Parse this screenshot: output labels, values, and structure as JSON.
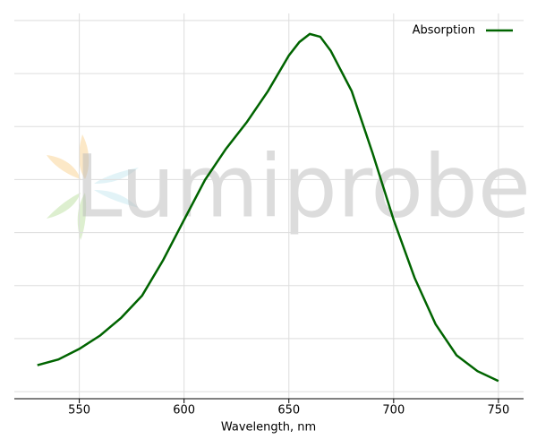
{
  "chart_data": {
    "type": "line",
    "xlabel": "Wavelength, nm",
    "watermark": "Lumiprobe",
    "x": [
      530,
      540,
      550,
      560,
      570,
      580,
      590,
      600,
      610,
      620,
      630,
      640,
      650,
      655,
      660,
      665,
      670,
      680,
      690,
      700,
      710,
      720,
      730,
      740,
      750
    ],
    "series": [
      {
        "name": "Absorption",
        "color": "#006400",
        "values": [
          0.075,
          0.091,
          0.121,
          0.159,
          0.209,
          0.272,
          0.372,
          0.486,
          0.599,
          0.687,
          0.763,
          0.85,
          0.951,
          0.989,
          1.012,
          1.004,
          0.964,
          0.85,
          0.674,
          0.486,
          0.322,
          0.191,
          0.103,
          0.058,
          0.03
        ]
      }
    ],
    "xlim": [
      519,
      762
    ],
    "xticks": [
      550,
      600,
      650,
      700,
      750
    ],
    "ylim": [
      -0.02,
      1.07
    ],
    "yticks": [
      0,
      0.15,
      0.3,
      0.45,
      0.6,
      0.75,
      0.9,
      1.05
    ],
    "grid": true,
    "legend": "upper right"
  }
}
